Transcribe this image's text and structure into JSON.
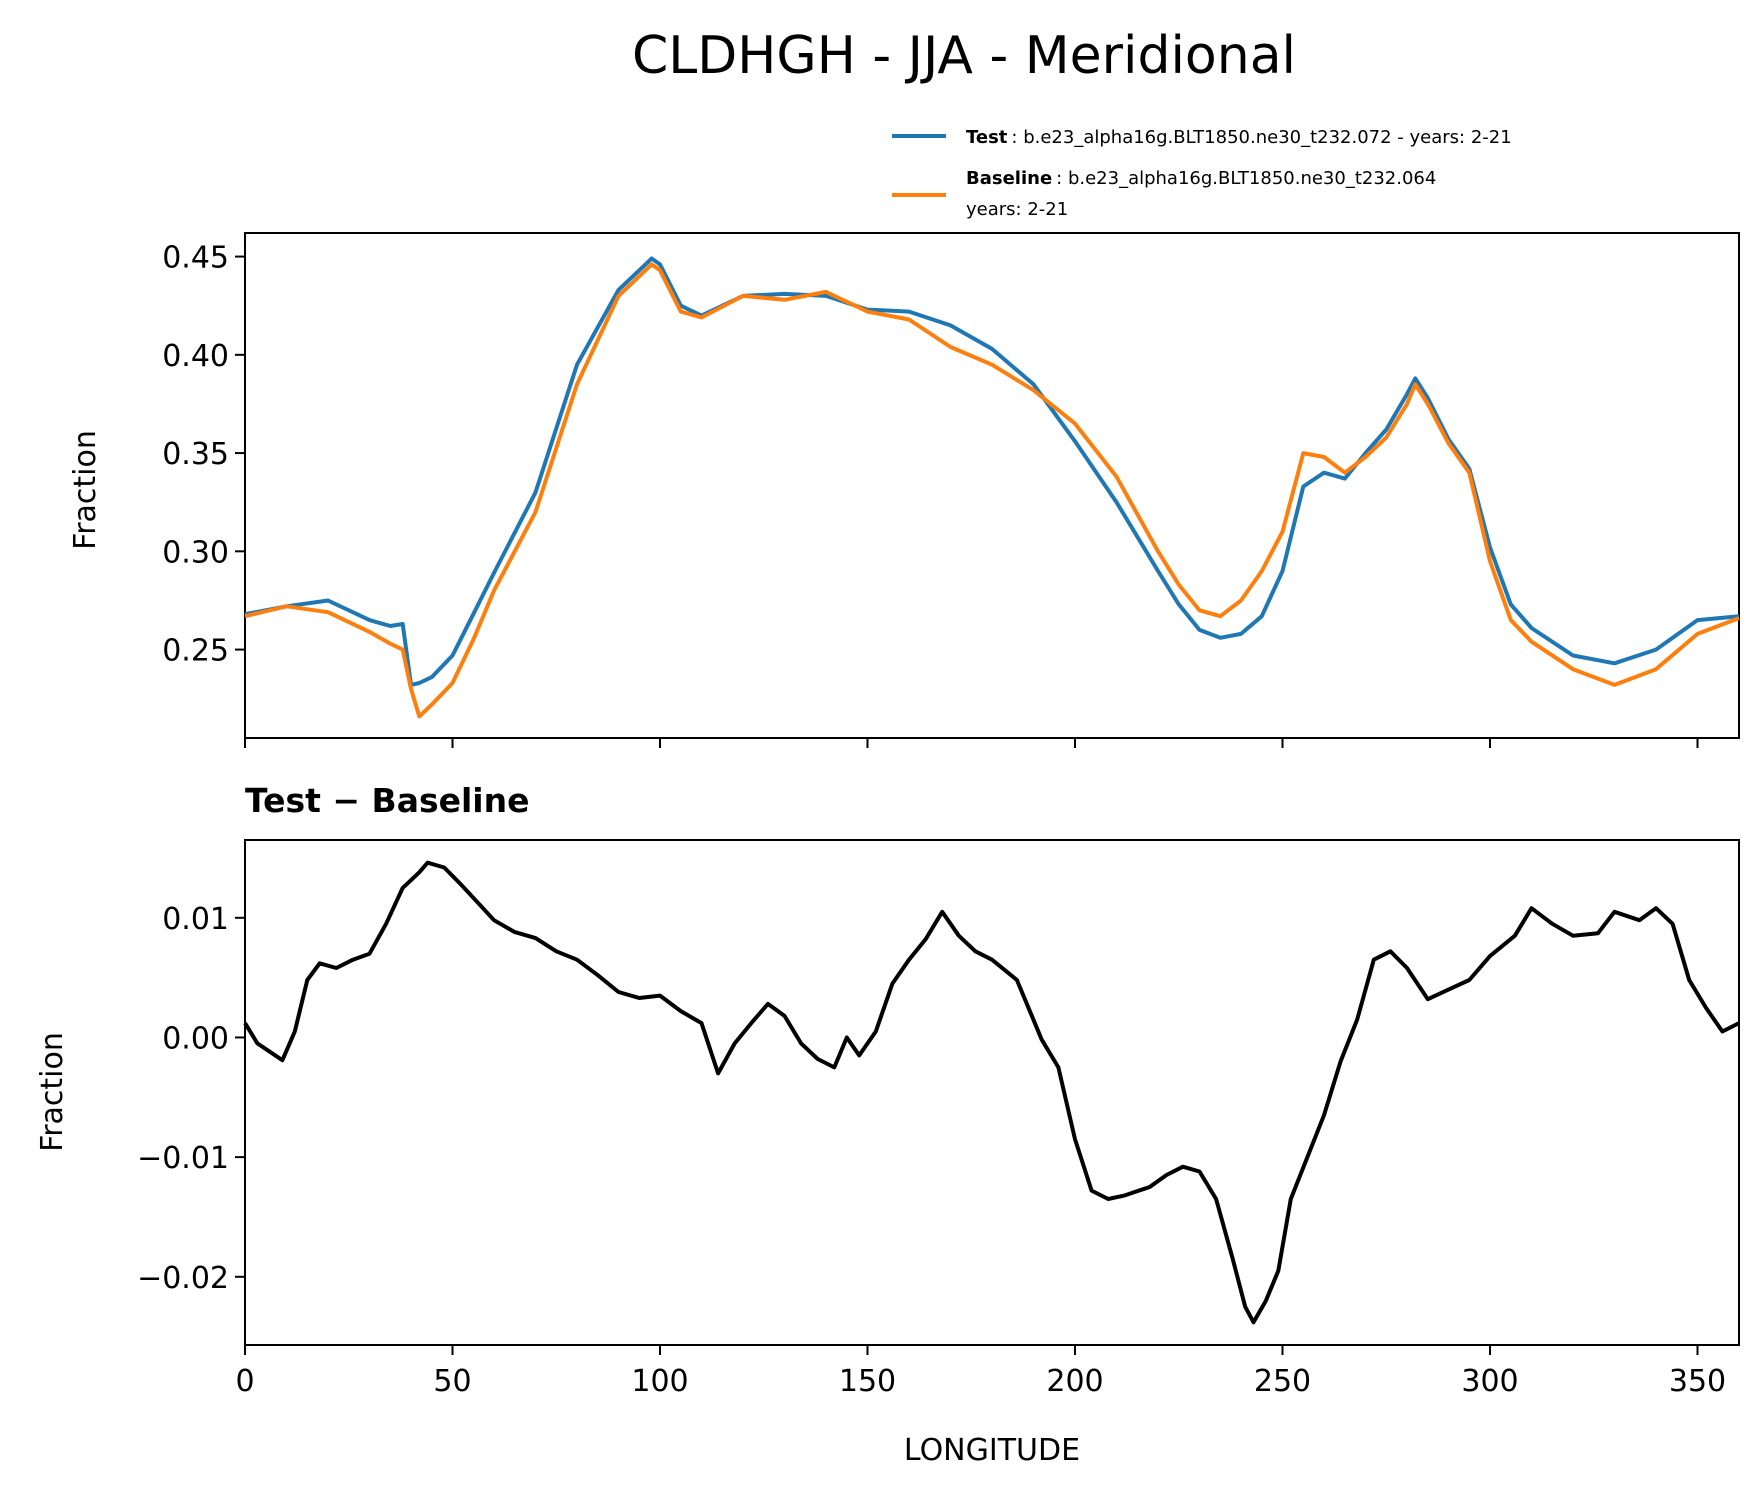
{
  "chart_data": [
    {
      "type": "line",
      "title": "CLDHGH - JJA - Meridional",
      "xlabel": "",
      "ylabel": "Fraction",
      "xlim": [
        0,
        360
      ],
      "ylim": [
        0.205,
        0.462
      ],
      "yticks": [
        "0.25",
        "0.30",
        "0.35",
        "0.40",
        "0.45"
      ],
      "ytick_values": [
        0.25,
        0.3,
        0.35,
        0.4,
        0.45
      ],
      "xtick_values": [
        0,
        50,
        100,
        150,
        200,
        250,
        300,
        350
      ],
      "grid": false,
      "legend_position": "top-right (above axes)",
      "x": [
        0,
        10,
        20,
        30,
        35,
        38,
        40,
        42,
        45,
        50,
        55,
        60,
        70,
        80,
        90,
        95,
        98,
        100,
        105,
        110,
        120,
        130,
        140,
        150,
        160,
        170,
        180,
        190,
        200,
        210,
        220,
        225,
        230,
        235,
        240,
        245,
        250,
        255,
        260,
        265,
        270,
        275,
        280,
        282,
        285,
        290,
        295,
        300,
        305,
        310,
        320,
        330,
        340,
        350,
        360
      ],
      "series": [
        {
          "name": "Test",
          "label_bold": "Test",
          "label_rest": ": b.e23_alpha16g.BLT1850.ne30_t232.072 - years: 2-21",
          "color": "#1f77b4",
          "values": [
            0.268,
            0.272,
            0.275,
            0.265,
            0.262,
            0.263,
            0.232,
            0.233,
            0.236,
            0.247,
            0.268,
            0.289,
            0.33,
            0.395,
            0.433,
            0.443,
            0.449,
            0.446,
            0.425,
            0.42,
            0.43,
            0.431,
            0.43,
            0.423,
            0.422,
            0.415,
            0.403,
            0.385,
            0.356,
            0.325,
            0.29,
            0.273,
            0.26,
            0.256,
            0.258,
            0.267,
            0.29,
            0.333,
            0.34,
            0.337,
            0.35,
            0.362,
            0.38,
            0.388,
            0.378,
            0.357,
            0.342,
            0.302,
            0.273,
            0.261,
            0.247,
            0.243,
            0.25,
            0.265,
            0.267
          ]
        },
        {
          "name": "Baseline",
          "label_bold": "Baseline",
          "label_rest": ": b.e23_alpha16g.BLT1850.ne30_t232.064",
          "label_line2": "years: 2-21",
          "color": "#ff7f0e",
          "values": [
            0.267,
            0.272,
            0.269,
            0.259,
            0.253,
            0.25,
            0.23,
            0.216,
            0.222,
            0.233,
            0.255,
            0.28,
            0.32,
            0.385,
            0.43,
            0.44,
            0.446,
            0.443,
            0.422,
            0.419,
            0.43,
            0.428,
            0.432,
            0.422,
            0.418,
            0.404,
            0.395,
            0.382,
            0.365,
            0.338,
            0.3,
            0.283,
            0.27,
            0.267,
            0.275,
            0.29,
            0.31,
            0.35,
            0.348,
            0.34,
            0.348,
            0.358,
            0.375,
            0.385,
            0.375,
            0.355,
            0.34,
            0.295,
            0.265,
            0.254,
            0.24,
            0.232,
            0.24,
            0.258,
            0.266
          ]
        }
      ]
    },
    {
      "type": "line",
      "title": "Test − Baseline",
      "xlabel": "LONGITUDE",
      "ylabel": "Fraction",
      "xlim": [
        0,
        360
      ],
      "ylim": [
        -0.0257,
        0.0165
      ],
      "yticks": [
        "−0.02",
        "−0.01",
        "0.00",
        "0.01"
      ],
      "ytick_values": [
        -0.02,
        -0.01,
        0.0,
        0.01
      ],
      "xticks": [
        "0",
        "50",
        "100",
        "150",
        "200",
        "250",
        "300",
        "350"
      ],
      "xtick_values": [
        0,
        50,
        100,
        150,
        200,
        250,
        300,
        350
      ],
      "grid": false,
      "x": [
        0,
        3,
        6,
        9,
        12,
        15,
        18,
        22,
        26,
        30,
        34,
        38,
        42,
        44,
        48,
        52,
        56,
        60,
        65,
        70,
        75,
        80,
        85,
        90,
        95,
        100,
        105,
        110,
        114,
        118,
        122,
        126,
        130,
        134,
        138,
        142,
        145,
        148,
        152,
        156,
        160,
        164,
        168,
        172,
        176,
        180,
        186,
        192,
        196,
        200,
        204,
        208,
        212,
        218,
        222,
        226,
        230,
        234,
        238,
        241,
        243,
        246,
        249,
        252,
        256,
        260,
        264,
        268,
        272,
        276,
        280,
        285,
        290,
        295,
        300,
        306,
        310,
        315,
        320,
        326,
        330,
        336,
        340,
        344,
        348,
        352,
        356,
        360
      ],
      "series": [
        {
          "name": "Test − Baseline",
          "color": "#000000",
          "values": [
            0.0012,
            -0.0005,
            -0.0012,
            -0.0019,
            0.0005,
            0.0048,
            0.0062,
            0.0058,
            0.0065,
            0.007,
            0.0095,
            0.0125,
            0.0138,
            0.0146,
            0.0142,
            0.0128,
            0.0113,
            0.0098,
            0.0088,
            0.0083,
            0.0072,
            0.0065,
            0.0052,
            0.0038,
            0.0033,
            0.0035,
            0.0022,
            0.0012,
            -0.003,
            -0.0005,
            0.0012,
            0.0028,
            0.0018,
            -0.0005,
            -0.0018,
            -0.0025,
            0.0,
            -0.0015,
            0.0005,
            0.0045,
            0.0065,
            0.0082,
            0.0105,
            0.0085,
            0.0072,
            0.0065,
            0.0048,
            -0.0002,
            -0.0025,
            -0.0085,
            -0.0128,
            -0.0135,
            -0.0132,
            -0.0125,
            -0.0115,
            -0.0108,
            -0.0112,
            -0.0135,
            -0.0185,
            -0.0225,
            -0.0238,
            -0.022,
            -0.0195,
            -0.0135,
            -0.01,
            -0.0065,
            -0.002,
            0.0015,
            0.0065,
            0.0072,
            0.0058,
            0.0032,
            0.004,
            0.0048,
            0.0068,
            0.0085,
            0.0108,
            0.0095,
            0.0085,
            0.0087,
            0.0105,
            0.0098,
            0.0108,
            0.0095,
            0.0048,
            0.0025,
            0.0005,
            0.0012
          ]
        }
      ]
    }
  ]
}
